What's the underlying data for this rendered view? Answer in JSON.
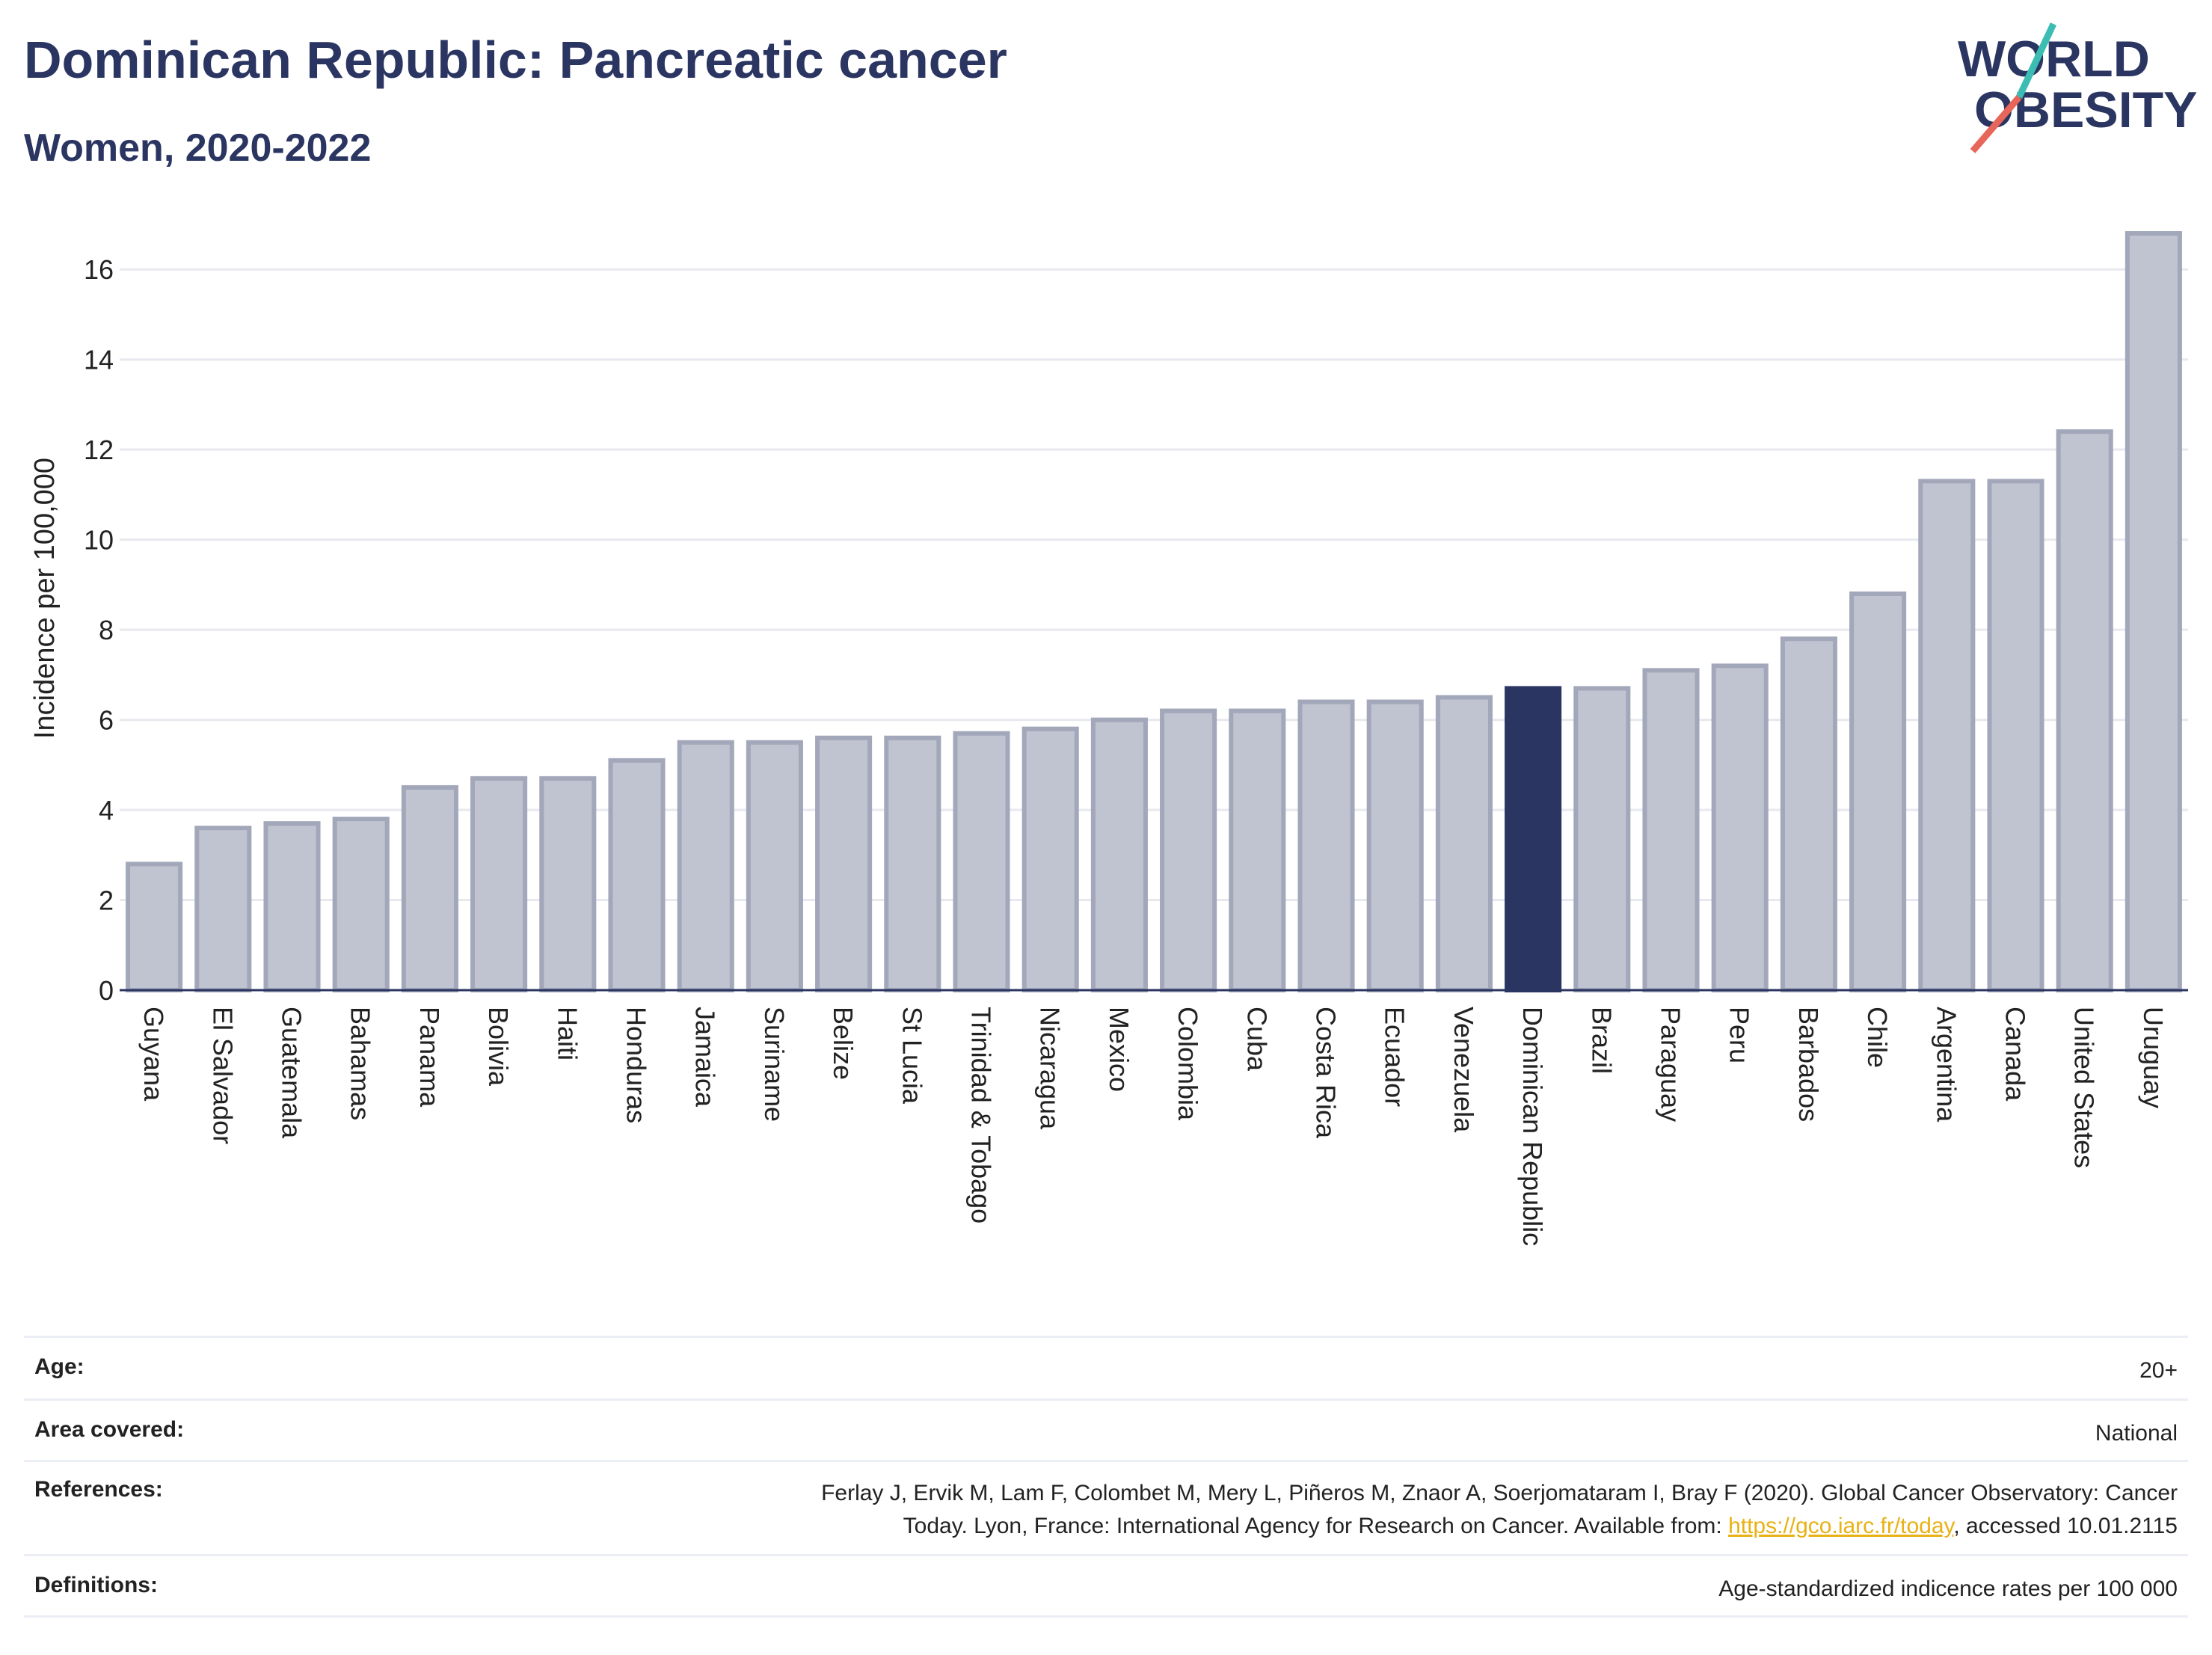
{
  "title": "Dominican Republic: Pancreatic cancer",
  "subtitle": "Women, 2020-2022",
  "logo": {
    "line1": "WORLD",
    "line2": "OBESITY"
  },
  "colors": {
    "title": "#2b3561",
    "bar_fill": "#c0c3d0",
    "bar_stroke": "#a2a7ba",
    "highlight": "#2b3561",
    "grid": "#e8e9ef",
    "link": "#e8b214",
    "logo_teal": "#3bbdb3",
    "logo_coral": "#e8655a"
  },
  "chart_data": {
    "type": "bar",
    "title": "Dominican Republic: Pancreatic cancer",
    "subtitle": "Women, 2020-2022",
    "xlabel": "",
    "ylabel": "Incidence per 100,000",
    "ylim": [
      0,
      17
    ],
    "yticks": [
      0,
      2,
      4,
      6,
      8,
      10,
      12,
      14,
      16
    ],
    "grid": true,
    "highlight": "Dominican Republic",
    "categories": [
      "Guyana",
      "El Salvador",
      "Guatemala",
      "Bahamas",
      "Panama",
      "Bolivia",
      "Haiti",
      "Honduras",
      "Jamaica",
      "Suriname",
      "Belize",
      "St Lucia",
      "Trinidad & Tobago",
      "Nicaragua",
      "Mexico",
      "Colombia",
      "Cuba",
      "Costa Rica",
      "Ecuador",
      "Venezuela",
      "Dominican Republic",
      "Brazil",
      "Paraguay",
      "Peru",
      "Barbados",
      "Chile",
      "Argentina",
      "Canada",
      "United States",
      "Uruguay"
    ],
    "values": [
      2.8,
      3.6,
      3.7,
      3.8,
      4.5,
      4.7,
      4.7,
      5.1,
      5.5,
      5.5,
      5.6,
      5.6,
      5.7,
      5.8,
      6.0,
      6.2,
      6.2,
      6.4,
      6.4,
      6.5,
      6.7,
      6.7,
      7.1,
      7.2,
      7.8,
      8.8,
      11.3,
      11.3,
      12.4,
      16.8
    ]
  },
  "info": {
    "age": {
      "label": "Age:",
      "value": "20+"
    },
    "area": {
      "label": "Area covered:",
      "value": "National"
    },
    "references": {
      "label": "References:",
      "text1": "Ferlay J, Ervik M, Lam F, Colombet M, Mery L, Piñeros M, Znaor A, Soerjomataram I, Bray F (2020). Global Cancer Observatory: Cancer",
      "text2": "Today. Lyon, France: International Agency for Research on Cancer. Available from: ",
      "link": "https://gco.iarc.fr/today",
      "text3": ", accessed 10.01.2115"
    },
    "definitions": {
      "label": "Definitions:",
      "value": "Age-standardized indicence rates per 100 000"
    }
  }
}
